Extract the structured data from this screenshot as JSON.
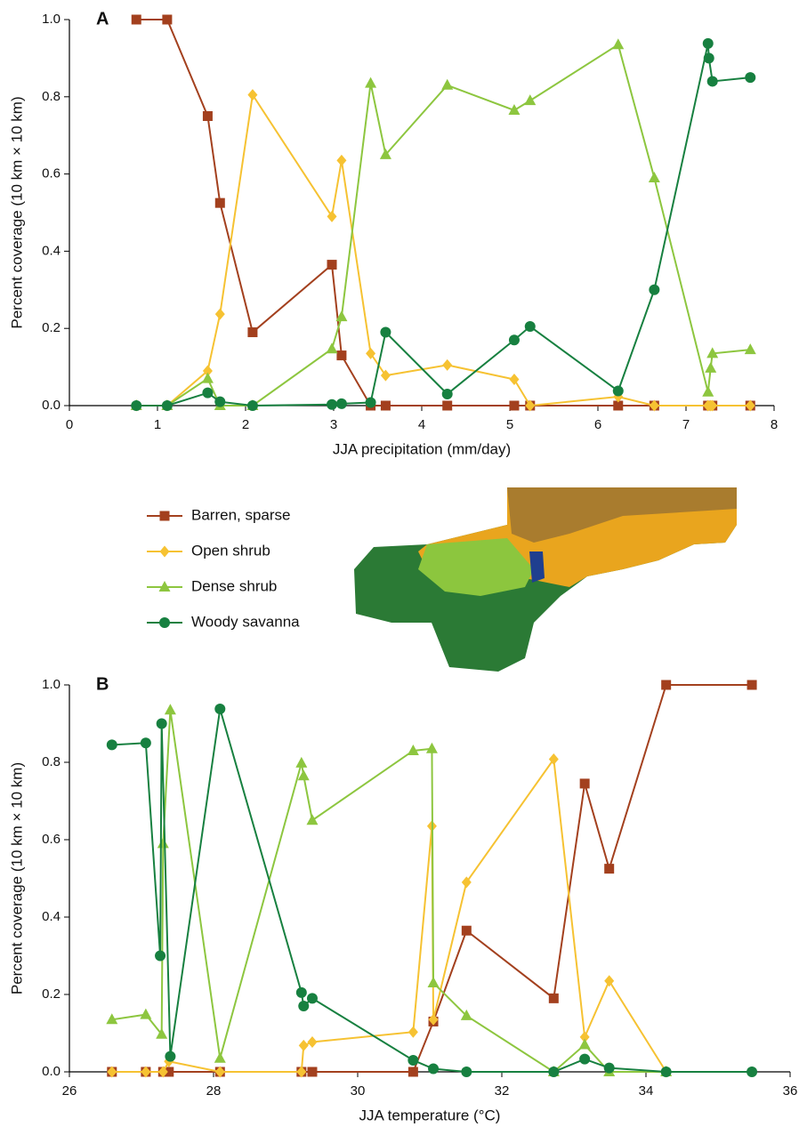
{
  "chart_data": [
    {
      "type": "line",
      "label": "A",
      "xlabel": "JJA precipitation (mm/day)",
      "ylabel": "Percent coverage (10 km × 10 km)",
      "xlim": [
        0,
        8
      ],
      "xticks": [
        0,
        1,
        2,
        3,
        4,
        5,
        6,
        7,
        8
      ],
      "ylim": [
        0,
        1
      ],
      "yticks": [
        {
          "value": 0,
          "label": "0.0"
        },
        0.2,
        0.4,
        0.6,
        0.8,
        {
          "value": 1,
          "label": "1.0"
        }
      ],
      "series": [
        {
          "name": "Barren, sparse",
          "color": "#a3401e",
          "marker": "square",
          "x": [
            0.76,
            1.11,
            1.57,
            1.71,
            2.08,
            2.98,
            3.09,
            3.42,
            3.59,
            4.29,
            5.05,
            5.23,
            6.23,
            6.64,
            7.25,
            7.28,
            7.3,
            7.73
          ],
          "values": [
            1.0,
            1.0,
            0.75,
            0.525,
            0.19,
            0.365,
            0.13,
            0,
            0,
            0,
            0,
            0,
            0,
            0,
            0,
            0,
            0,
            0
          ]
        },
        {
          "name": "Open shrub",
          "color": "#f6c232",
          "marker": "diamond",
          "x": [
            0.76,
            1.11,
            1.57,
            1.71,
            2.08,
            2.98,
            3.09,
            3.42,
            3.59,
            4.29,
            5.05,
            5.23,
            6.23,
            6.64,
            7.25,
            7.28,
            7.3,
            7.73
          ],
          "values": [
            0,
            0,
            0.09,
            0.237,
            0.805,
            0.49,
            0.635,
            0.135,
            0.078,
            0.105,
            0.068,
            0,
            0.023,
            0,
            0,
            0,
            0,
            0
          ]
        },
        {
          "name": "Dense shrub",
          "color": "#8dc63f",
          "marker": "triangle",
          "x": [
            0.76,
            1.11,
            1.57,
            1.71,
            2.08,
            2.98,
            3.09,
            3.42,
            3.59,
            4.29,
            5.05,
            5.23,
            6.23,
            6.64,
            7.25,
            7.28,
            7.3,
            7.73
          ],
          "values": [
            0,
            0,
            0.07,
            0,
            0,
            0.147,
            0.23,
            0.835,
            0.65,
            0.83,
            0.765,
            0.79,
            0.935,
            0.59,
            0.035,
            0.097,
            0.135,
            0.145
          ]
        },
        {
          "name": "Woody savanna",
          "color": "#178040",
          "marker": "circle",
          "x": [
            0.76,
            1.11,
            1.57,
            1.71,
            2.08,
            2.98,
            3.09,
            3.42,
            3.59,
            4.29,
            5.05,
            5.23,
            6.23,
            6.64,
            7.25,
            7.26,
            7.3,
            7.73
          ],
          "values": [
            0,
            0,
            0.033,
            0.01,
            0,
            0.003,
            0.005,
            0.008,
            0.19,
            0.03,
            0.17,
            0.205,
            0.038,
            0.3,
            0.938,
            0.9,
            0.84,
            0.85
          ]
        }
      ]
    },
    {
      "type": "line",
      "label": "B",
      "xlabel": "JJA temperature (°C)",
      "ylabel": "Percent coverage (10 km × 10 km)",
      "xlim": [
        26,
        36
      ],
      "xticks": [
        26,
        28,
        30,
        32,
        34,
        36
      ],
      "ylim": [
        0,
        1
      ],
      "yticks": [
        {
          "value": 0,
          "label": "0.0"
        },
        0.2,
        0.4,
        0.6,
        0.8,
        {
          "value": 1,
          "label": "1.0"
        }
      ],
      "series": [
        {
          "color": "#a3401e",
          "marker": "square",
          "x": [
            26.59,
            27.06,
            27.3,
            27.38,
            28.09,
            29.22,
            29.37,
            30.77,
            31.05,
            31.51,
            32.72,
            33.15,
            33.49,
            34.28,
            35.47
          ],
          "values": [
            0,
            0,
            0,
            0,
            0,
            0,
            0,
            0,
            0.13,
            0.365,
            0.19,
            0.745,
            0.525,
            1.0,
            1.0
          ]
        },
        {
          "color": "#f6c232",
          "marker": "diamond",
          "x": [
            26.59,
            27.06,
            27.3,
            27.38,
            28.09,
            29.22,
            29.25,
            29.37,
            30.77,
            31.03,
            31.05,
            31.51,
            32.72,
            33.15,
            33.49,
            34.28
          ],
          "values": [
            0,
            0,
            0,
            0.027,
            0,
            0,
            0.068,
            0.077,
            0.103,
            0.635,
            0.135,
            0.49,
            0.808,
            0.09,
            0.235,
            0
          ]
        },
        {
          "color": "#8dc63f",
          "marker": "triangle",
          "x": [
            26.59,
            27.06,
            27.28,
            27.3,
            27.4,
            28.09,
            29.22,
            29.25,
            29.37,
            30.77,
            31.03,
            31.05,
            31.51,
            32.72,
            33.15,
            33.49,
            34.28
          ],
          "values": [
            0.135,
            0.148,
            0.097,
            0.59,
            0.935,
            0.035,
            0.798,
            0.765,
            0.65,
            0.83,
            0.835,
            0.23,
            0.145,
            0,
            0.07,
            0,
            0
          ]
        },
        {
          "color": "#178040",
          "marker": "circle",
          "x": [
            26.59,
            27.06,
            27.26,
            27.28,
            27.4,
            28.09,
            29.22,
            29.25,
            29.37,
            30.77,
            31.05,
            31.51,
            32.72,
            33.15,
            33.49,
            34.28,
            35.47
          ],
          "values": [
            0.845,
            0.85,
            0.3,
            0.9,
            0.04,
            0.938,
            0.205,
            0.17,
            0.19,
            0.03,
            0.008,
            0,
            0,
            0.033,
            0.01,
            0,
            0
          ]
        }
      ]
    }
  ]
}
